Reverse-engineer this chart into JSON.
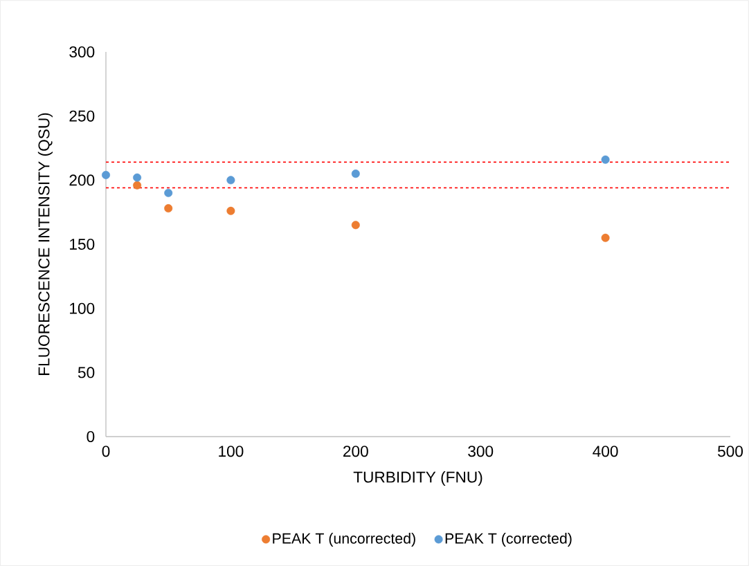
{
  "chart_data": {
    "type": "scatter",
    "xlabel": "TURBIDITY (FNU)",
    "ylabel": "FLUORESCENCE INTENSITY (QSU)",
    "x": [
      0,
      25,
      50,
      100,
      200,
      400
    ],
    "series": [
      {
        "name": "PEAK T (uncorrected)",
        "color": "#ed7d31",
        "values": [
          null,
          196,
          178,
          176,
          165,
          155
        ]
      },
      {
        "name": "PEAK T (corrected)",
        "color": "#5b9bd5",
        "values": [
          204,
          202,
          190,
          200,
          205,
          216
        ]
      }
    ],
    "xlim": [
      0,
      500
    ],
    "xticks": [
      0,
      100,
      200,
      300,
      400,
      500
    ],
    "ylim": [
      0,
      300
    ],
    "yticks": [
      0,
      50,
      100,
      150,
      200,
      250,
      300
    ],
    "ref_lines": [
      {
        "axis": "y",
        "value": 214,
        "color": "#ff0000",
        "line_style": "dashed"
      },
      {
        "axis": "y",
        "value": 194,
        "color": "#ff0000",
        "line_style": "dashed"
      }
    ],
    "grid": false,
    "legend": "bottom",
    "marker": "circle"
  }
}
